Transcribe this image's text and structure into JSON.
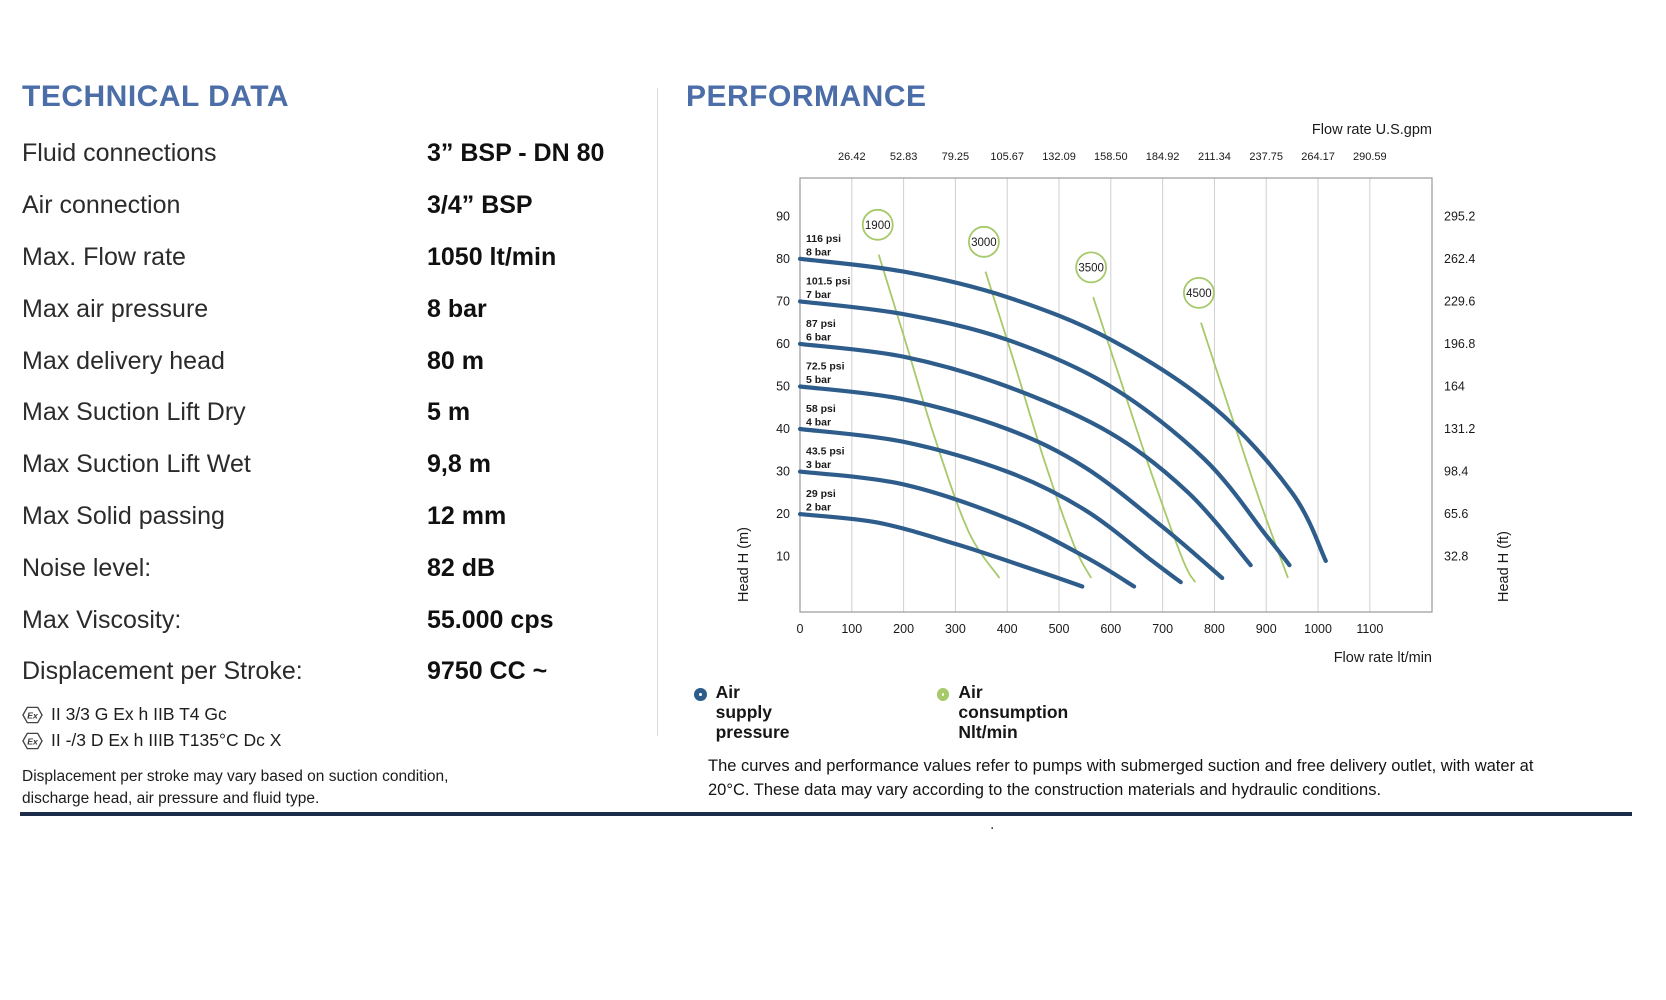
{
  "page": {
    "left_title": "TECHNICAL DATA",
    "right_title": "PERFORMANCE",
    "stray_dot": "."
  },
  "technical": {
    "rows": [
      {
        "label": "Fluid connections",
        "value": "3” BSP - DN 80"
      },
      {
        "label": "Air connection",
        "value": "3/4” BSP"
      },
      {
        "label": "Max. Flow rate",
        "value": "1050 lt/min"
      },
      {
        "label": "Max air pressure",
        "value": "8 bar"
      },
      {
        "label": "Max delivery head",
        "value": "80 m"
      },
      {
        "label": "Max Suction Lift Dry",
        "value": "5 m"
      },
      {
        "label": "Max Suction Lift Wet",
        "value": "9,8 m"
      },
      {
        "label": "Max Solid passing",
        "value": "12 mm"
      },
      {
        "label": "Noise level:",
        "value": "82 dB"
      },
      {
        "label": "Max Viscosity:",
        "value": "55.000 cps"
      },
      {
        "label": "Displacement per Stroke:",
        "value": "9750 CC ~"
      }
    ],
    "atex_lines": [
      "II 3/3 G Ex h IIB T4 Gc",
      "II -/3 D Ex h IIIB T135°C Dc X"
    ],
    "note": "Displacement per stroke may vary based on suction condition, discharge head, air pressure and fluid type."
  },
  "performance": {
    "legend": [
      {
        "lines": [
          "Air supply",
          "pressure"
        ]
      },
      {
        "lines": [
          "Air consumption",
          "Nlt/min"
        ]
      }
    ],
    "footnote": "The curves and performance values refer to pumps with submerged suction and free delivery outlet, with water at 20°C. These data may vary according to the construction materials and hydraulic conditions."
  },
  "chart_data": {
    "type": "line",
    "title": "PERFORMANCE",
    "x_range": [
      0,
      1220
    ],
    "y_range": [
      -3,
      99
    ],
    "gridlines_x": [
      100,
      200,
      300,
      400,
      500,
      600,
      700,
      800,
      900,
      1000,
      1100
    ],
    "top_axis": {
      "label": "Flow rate U.S.gpm",
      "tick_labels": [
        "26.42",
        "52.83",
        "79.25",
        "105.67",
        "132.09",
        "158.50",
        "184.92",
        "211.34",
        "237.75",
        "264.17",
        "290.59"
      ]
    },
    "bottom_axis": {
      "label": "Flow rate  lt/min",
      "ticks": [
        0,
        100,
        200,
        300,
        400,
        500,
        600,
        700,
        800,
        900,
        1000,
        1100
      ]
    },
    "left_axis": {
      "label": "Head H (m)",
      "ticks": [
        10,
        20,
        30,
        40,
        50,
        60,
        70,
        80,
        90
      ]
    },
    "right_axis": {
      "label": "Head H (ft)",
      "tick_labels": [
        "32.8",
        "65.6",
        "98.4",
        "131.2",
        "164",
        "196.8",
        "229.6",
        "262.4",
        "295.2"
      ]
    },
    "series": [
      {
        "psi": "116 psi",
        "bar": "8 bar",
        "points": [
          [
            0,
            80
          ],
          [
            200,
            77
          ],
          [
            400,
            71
          ],
          [
            600,
            61
          ],
          [
            800,
            45
          ],
          [
            950,
            25
          ],
          [
            1015,
            9
          ]
        ]
      },
      {
        "psi": "101.5 psi",
        "bar": "7 bar",
        "points": [
          [
            0,
            70
          ],
          [
            200,
            67
          ],
          [
            400,
            61
          ],
          [
            600,
            50
          ],
          [
            780,
            33
          ],
          [
            900,
            15
          ],
          [
            945,
            8
          ]
        ]
      },
      {
        "psi": "87 psi",
        "bar": "6 bar",
        "points": [
          [
            0,
            60
          ],
          [
            200,
            57
          ],
          [
            400,
            50
          ],
          [
            600,
            39
          ],
          [
            750,
            25
          ],
          [
            870,
            8
          ]
        ]
      },
      {
        "psi": "72.5 psi",
        "bar": "5 bar",
        "points": [
          [
            0,
            50
          ],
          [
            200,
            47
          ],
          [
            400,
            40
          ],
          [
            550,
            31
          ],
          [
            700,
            17
          ],
          [
            815,
            5
          ]
        ]
      },
      {
        "psi": "58 psi",
        "bar": "4 bar",
        "points": [
          [
            0,
            40
          ],
          [
            200,
            37
          ],
          [
            400,
            30
          ],
          [
            550,
            21
          ],
          [
            680,
            9
          ],
          [
            735,
            4
          ]
        ]
      },
      {
        "psi": "43.5 psi",
        "bar": "3 bar",
        "points": [
          [
            0,
            30
          ],
          [
            200,
            27
          ],
          [
            400,
            19
          ],
          [
            550,
            10
          ],
          [
            645,
            3
          ]
        ]
      },
      {
        "psi": "29 psi",
        "bar": "2 bar",
        "points": [
          [
            0,
            20
          ],
          [
            150,
            18
          ],
          [
            300,
            13
          ],
          [
            450,
            7
          ],
          [
            545,
            3
          ]
        ]
      }
    ],
    "consumption": [
      {
        "label": "1900",
        "circle": [
          150,
          88
        ],
        "points": [
          [
            152,
            81
          ],
          [
            205,
            60
          ],
          [
            260,
            38
          ],
          [
            325,
            16
          ],
          [
            385,
            5
          ]
        ]
      },
      {
        "label": "3000",
        "circle": [
          355,
          84
        ],
        "points": [
          [
            358,
            77
          ],
          [
            410,
            57
          ],
          [
            468,
            34
          ],
          [
            528,
            13
          ],
          [
            562,
            5
          ]
        ]
      },
      {
        "label": "3500",
        "circle": [
          562,
          78
        ],
        "points": [
          [
            566,
            71
          ],
          [
            620,
            51
          ],
          [
            680,
            29
          ],
          [
            740,
            9
          ],
          [
            763,
            4
          ]
        ]
      },
      {
        "label": "4500",
        "circle": [
          770,
          72
        ],
        "points": [
          [
            774,
            65
          ],
          [
            828,
            45
          ],
          [
            888,
            23
          ],
          [
            942,
            5
          ]
        ]
      }
    ],
    "colors": {
      "pressure": "#2e5d8c",
      "consumption": "#a6c96a",
      "psi": "#c23b34",
      "grid": "#cfcfcf",
      "frame": "#9a9a9a"
    }
  }
}
